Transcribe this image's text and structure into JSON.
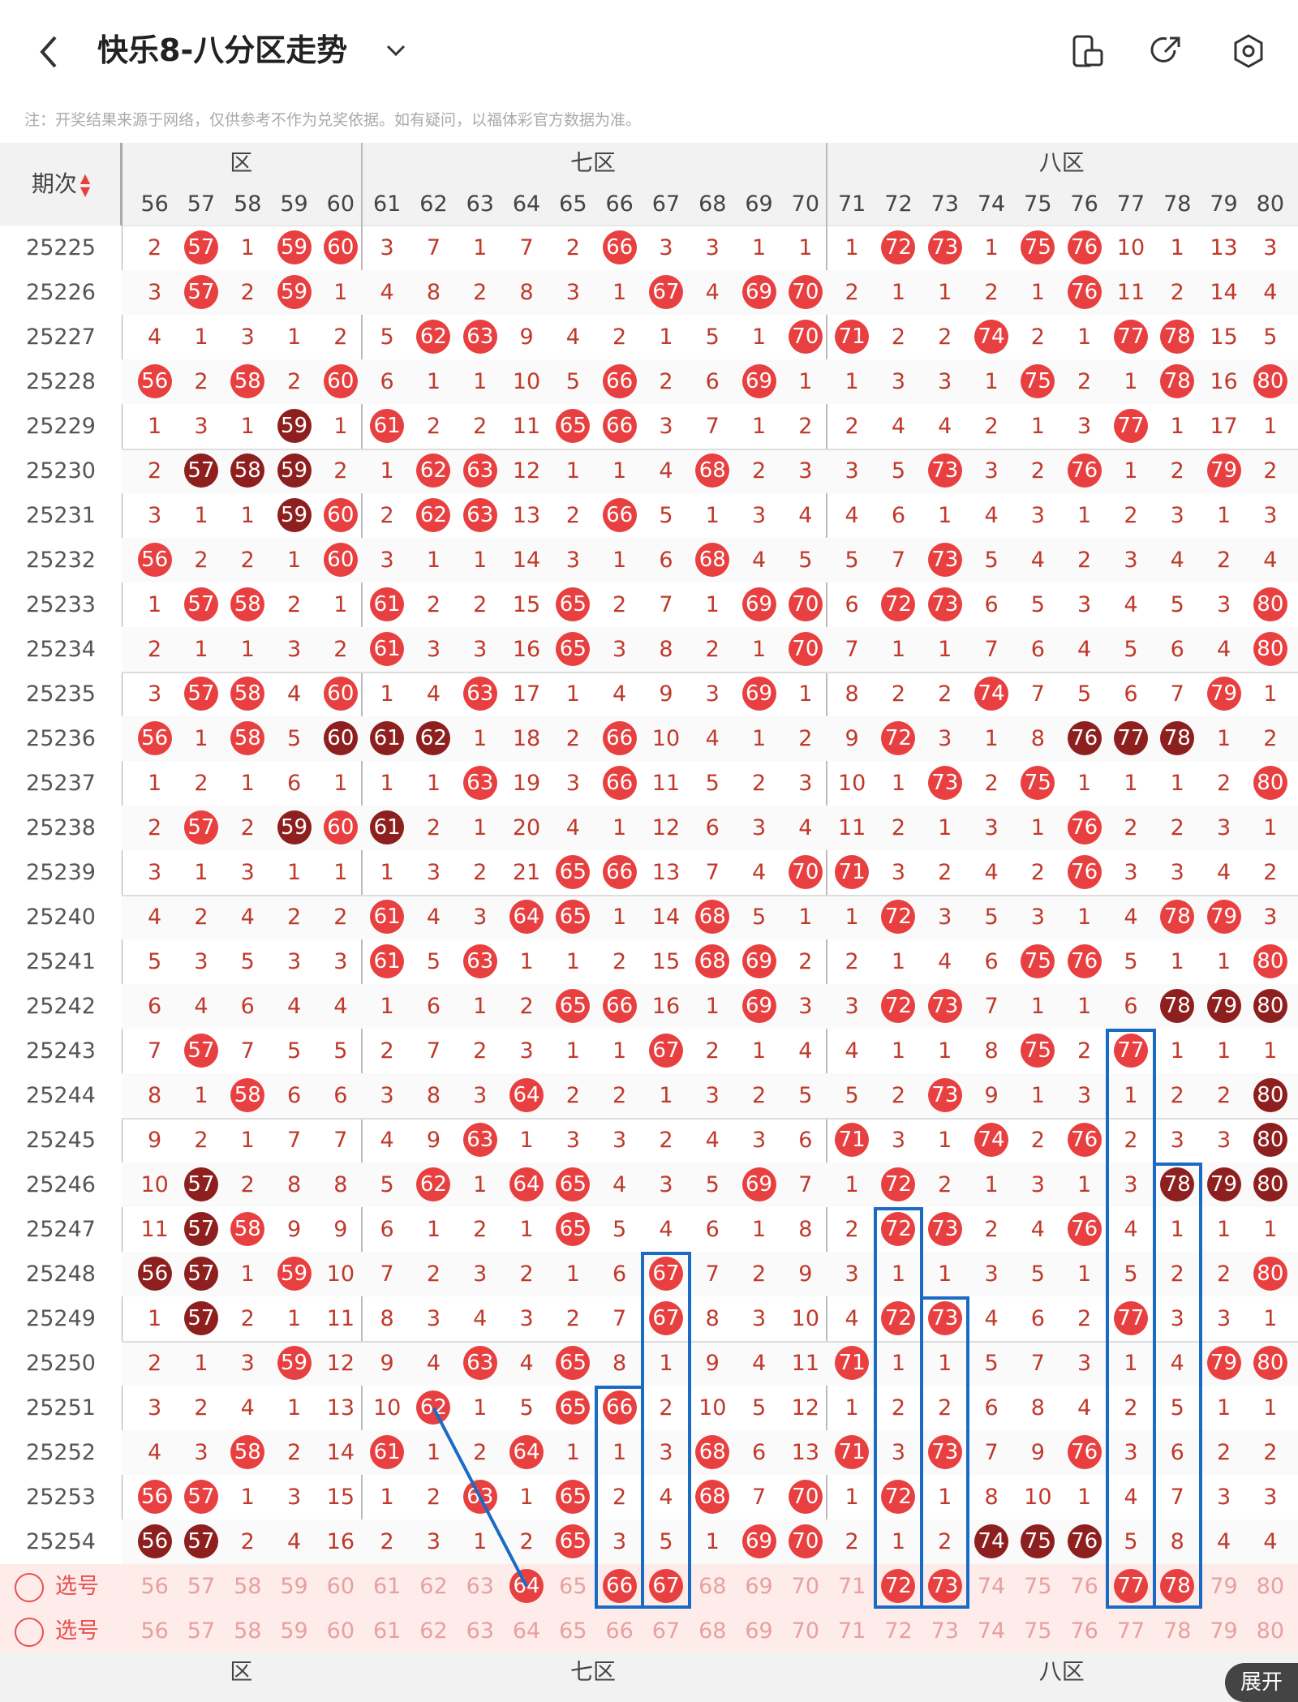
{
  "header": {
    "title": "快乐8-八分区走势",
    "notice": "注：开奖结果来源于网络，仅供参考不作为兑奖依据。如有疑问，以福体彩官方数据为准。"
  },
  "table": {
    "period_label": "期次",
    "zones": [
      "六区",
      "七区",
      "八区"
    ],
    "zones_visible": [
      "区",
      "七区",
      "八区"
    ],
    "columns": [
      56,
      57,
      58,
      59,
      60,
      61,
      62,
      63,
      64,
      65,
      66,
      67,
      68,
      69,
      70,
      71,
      72,
      73,
      74,
      75,
      76,
      77,
      78,
      79,
      80
    ],
    "rows": [
      {
        "p": "25225",
        "v": [
          "2",
          "57",
          "1",
          "59",
          "60",
          "3",
          "7",
          "1",
          "7",
          "2",
          "66",
          "3",
          "3",
          "1",
          "1",
          "1",
          "72",
          "73",
          "1",
          "75",
          "76",
          "10",
          "1",
          "13",
          "3"
        ]
      },
      {
        "p": "25226",
        "v": [
          "3",
          "57",
          "2",
          "59",
          "1",
          "4",
          "8",
          "2",
          "8",
          "3",
          "1",
          "67",
          "4",
          "69",
          "70",
          "2",
          "1",
          "1",
          "2",
          "1",
          "76",
          "11",
          "2",
          "14",
          "4"
        ]
      },
      {
        "p": "25227",
        "v": [
          "4",
          "1",
          "3",
          "1",
          "2",
          "5",
          "62",
          "63",
          "9",
          "4",
          "2",
          "1",
          "5",
          "1",
          "70",
          "71",
          "2",
          "2",
          "74",
          "2",
          "1",
          "77",
          "78",
          "15",
          "5"
        ]
      },
      {
        "p": "25228",
        "v": [
          "56",
          "2",
          "58",
          "2",
          "60",
          "6",
          "1",
          "1",
          "10",
          "5",
          "66",
          "2",
          "6",
          "69",
          "1",
          "1",
          "3",
          "3",
          "1",
          "75",
          "2",
          "1",
          "78",
          "16",
          "80"
        ]
      },
      {
        "p": "25229",
        "v": [
          "1",
          "3",
          "1",
          "59",
          "1",
          "61",
          "2",
          "2",
          "11",
          "65",
          "66",
          "3",
          "7",
          "1",
          "2",
          "2",
          "4",
          "4",
          "2",
          "1",
          "3",
          "77",
          "1",
          "17",
          "1"
        ]
      },
      {
        "p": "25230",
        "v": [
          "2",
          "57",
          "58",
          "59",
          "2",
          "1",
          "62",
          "63",
          "12",
          "1",
          "1",
          "4",
          "68",
          "2",
          "3",
          "3",
          "5",
          "73",
          "3",
          "2",
          "76",
          "1",
          "2",
          "79",
          "2"
        ]
      },
      {
        "p": "25231",
        "v": [
          "3",
          "1",
          "1",
          "59",
          "60",
          "2",
          "62",
          "63",
          "13",
          "2",
          "66",
          "5",
          "1",
          "3",
          "4",
          "4",
          "6",
          "1",
          "4",
          "3",
          "1",
          "2",
          "3",
          "1",
          "3"
        ]
      },
      {
        "p": "25232",
        "v": [
          "56",
          "2",
          "2",
          "1",
          "60",
          "3",
          "1",
          "1",
          "14",
          "3",
          "1",
          "6",
          "68",
          "4",
          "5",
          "5",
          "7",
          "73",
          "5",
          "4",
          "2",
          "3",
          "4",
          "2",
          "4"
        ]
      },
      {
        "p": "25233",
        "v": [
          "1",
          "57",
          "58",
          "2",
          "1",
          "61",
          "2",
          "2",
          "15",
          "65",
          "2",
          "7",
          "1",
          "69",
          "70",
          "6",
          "72",
          "73",
          "6",
          "5",
          "3",
          "4",
          "5",
          "3",
          "80"
        ]
      },
      {
        "p": "25234",
        "v": [
          "2",
          "1",
          "1",
          "3",
          "2",
          "61",
          "3",
          "3",
          "16",
          "65",
          "3",
          "8",
          "2",
          "1",
          "70",
          "7",
          "1",
          "1",
          "7",
          "6",
          "4",
          "5",
          "6",
          "4",
          "80"
        ]
      },
      {
        "p": "25235",
        "v": [
          "3",
          "57",
          "58",
          "4",
          "60",
          "1",
          "4",
          "63",
          "17",
          "1",
          "4",
          "9",
          "3",
          "69",
          "1",
          "8",
          "2",
          "2",
          "74",
          "7",
          "5",
          "6",
          "7",
          "79",
          "1"
        ]
      },
      {
        "p": "25236",
        "v": [
          "56",
          "1",
          "58",
          "5",
          "60",
          "61",
          "62",
          "1",
          "18",
          "2",
          "66",
          "10",
          "4",
          "1",
          "2",
          "9",
          "72",
          "3",
          "1",
          "8",
          "76",
          "77",
          "78",
          "1",
          "2"
        ]
      },
      {
        "p": "25237",
        "v": [
          "1",
          "2",
          "1",
          "6",
          "1",
          "1",
          "1",
          "63",
          "19",
          "3",
          "66",
          "11",
          "5",
          "2",
          "3",
          "10",
          "1",
          "73",
          "2",
          "75",
          "1",
          "1",
          "1",
          "2",
          "80"
        ]
      },
      {
        "p": "25238",
        "v": [
          "2",
          "57",
          "2",
          "59",
          "60",
          "61",
          "2",
          "1",
          "20",
          "4",
          "1",
          "12",
          "6",
          "3",
          "4",
          "11",
          "2",
          "1",
          "3",
          "1",
          "76",
          "2",
          "2",
          "3",
          "1"
        ]
      },
      {
        "p": "25239",
        "v": [
          "3",
          "1",
          "3",
          "1",
          "1",
          "1",
          "3",
          "2",
          "21",
          "65",
          "66",
          "13",
          "7",
          "4",
          "70",
          "71",
          "3",
          "2",
          "4",
          "2",
          "76",
          "3",
          "3",
          "4",
          "2"
        ]
      },
      {
        "p": "25240",
        "v": [
          "4",
          "2",
          "4",
          "2",
          "2",
          "61",
          "4",
          "3",
          "64",
          "65",
          "1",
          "14",
          "68",
          "5",
          "1",
          "1",
          "72",
          "3",
          "5",
          "3",
          "1",
          "4",
          "78",
          "79",
          "3"
        ]
      },
      {
        "p": "25241",
        "v": [
          "5",
          "3",
          "5",
          "3",
          "3",
          "61",
          "5",
          "63",
          "1",
          "1",
          "2",
          "15",
          "68",
          "69",
          "2",
          "2",
          "1",
          "4",
          "6",
          "75",
          "76",
          "5",
          "1",
          "1",
          "80"
        ]
      },
      {
        "p": "25242",
        "v": [
          "6",
          "4",
          "6",
          "4",
          "4",
          "1",
          "6",
          "1",
          "2",
          "65",
          "66",
          "16",
          "1",
          "69",
          "3",
          "3",
          "72",
          "73",
          "7",
          "1",
          "1",
          "6",
          "78",
          "79",
          "80"
        ]
      },
      {
        "p": "25243",
        "v": [
          "7",
          "57",
          "7",
          "5",
          "5",
          "2",
          "7",
          "2",
          "3",
          "1",
          "1",
          "67",
          "2",
          "1",
          "4",
          "4",
          "1",
          "1",
          "8",
          "75",
          "2",
          "77",
          "1",
          "1",
          "1"
        ]
      },
      {
        "p": "25244",
        "v": [
          "8",
          "1",
          "58",
          "6",
          "6",
          "3",
          "8",
          "3",
          "64",
          "2",
          "2",
          "1",
          "3",
          "2",
          "5",
          "5",
          "2",
          "73",
          "9",
          "1",
          "3",
          "1",
          "2",
          "2",
          "80"
        ]
      },
      {
        "p": "25245",
        "v": [
          "9",
          "2",
          "1",
          "7",
          "7",
          "4",
          "9",
          "63",
          "1",
          "3",
          "3",
          "2",
          "4",
          "3",
          "6",
          "71",
          "3",
          "1",
          "74",
          "2",
          "76",
          "2",
          "3",
          "3",
          "80"
        ]
      },
      {
        "p": "25246",
        "v": [
          "10",
          "57",
          "2",
          "8",
          "8",
          "5",
          "62",
          "1",
          "64",
          "65",
          "4",
          "3",
          "5",
          "69",
          "7",
          "1",
          "72",
          "2",
          "1",
          "3",
          "1",
          "3",
          "78",
          "79",
          "80"
        ]
      },
      {
        "p": "25247",
        "v": [
          "11",
          "57",
          "58",
          "9",
          "9",
          "6",
          "1",
          "2",
          "1",
          "65",
          "5",
          "4",
          "6",
          "1",
          "8",
          "2",
          "72",
          "73",
          "2",
          "4",
          "76",
          "4",
          "1",
          "1",
          "1"
        ]
      },
      {
        "p": "25248",
        "v": [
          "56",
          "57",
          "1",
          "59",
          "10",
          "7",
          "2",
          "3",
          "2",
          "1",
          "6",
          "67",
          "7",
          "2",
          "9",
          "3",
          "1",
          "1",
          "3",
          "5",
          "1",
          "5",
          "2",
          "2",
          "80"
        ]
      },
      {
        "p": "25249",
        "v": [
          "1",
          "57",
          "2",
          "1",
          "11",
          "8",
          "3",
          "4",
          "3",
          "2",
          "7",
          "67",
          "8",
          "3",
          "10",
          "4",
          "72",
          "73",
          "4",
          "6",
          "2",
          "77",
          "3",
          "3",
          "1"
        ]
      },
      {
        "p": "25250",
        "v": [
          "2",
          "1",
          "3",
          "59",
          "12",
          "9",
          "4",
          "63",
          "4",
          "65",
          "8",
          "1",
          "9",
          "4",
          "11",
          "71",
          "1",
          "1",
          "5",
          "7",
          "3",
          "1",
          "4",
          "79",
          "80"
        ]
      },
      {
        "p": "25251",
        "v": [
          "3",
          "2",
          "4",
          "1",
          "13",
          "10",
          "62",
          "1",
          "5",
          "65",
          "66",
          "2",
          "10",
          "5",
          "12",
          "1",
          "2",
          "2",
          "6",
          "8",
          "4",
          "2",
          "5",
          "1",
          "1"
        ]
      },
      {
        "p": "25252",
        "v": [
          "4",
          "3",
          "58",
          "2",
          "14",
          "61",
          "1",
          "2",
          "64",
          "1",
          "1",
          "3",
          "68",
          "6",
          "13",
          "71",
          "3",
          "73",
          "7",
          "9",
          "76",
          "3",
          "6",
          "2",
          "2"
        ]
      },
      {
        "p": "25253",
        "v": [
          "56",
          "57",
          "1",
          "3",
          "15",
          "1",
          "2",
          "63",
          "1",
          "65",
          "2",
          "4",
          "68",
          "7",
          "70",
          "1",
          "72",
          "1",
          "8",
          "10",
          "1",
          "4",
          "7",
          "3",
          "3"
        ]
      },
      {
        "p": "25254",
        "v": [
          "56",
          "57",
          "2",
          "4",
          "16",
          "2",
          "3",
          "1",
          "2",
          "65",
          "3",
          "5",
          "1",
          "69",
          "70",
          "2",
          "1",
          "2",
          "74",
          "75",
          "76",
          "5",
          "8",
          "4",
          "4"
        ]
      }
    ],
    "dark_cells": [
      "25229-59",
      "25230-57",
      "25230-58",
      "25230-59",
      "25231-59",
      "25236-60",
      "25236-61",
      "25236-62",
      "25236-76",
      "25236-77",
      "25236-78",
      "25238-59",
      "25238-61",
      "25242-78",
      "25242-79",
      "25242-80",
      "25244-80",
      "25245-80",
      "25246-57",
      "25246-78",
      "25246-79",
      "25246-80",
      "25247-57",
      "25248-56",
      "25248-57",
      "25249-57",
      "25254-56",
      "25254-57",
      "25254-74",
      "25254-75",
      "25254-76"
    ],
    "select_label": "选号",
    "select_row1_picked": [
      "64",
      "66",
      "67",
      "72",
      "73",
      "77",
      "78"
    ],
    "expand_label": "展开"
  },
  "colors": {
    "ball": "#e84040",
    "ball_dark": "#8e1f1f",
    "box": "#1a6bc4",
    "text_red": "#c0392b"
  }
}
